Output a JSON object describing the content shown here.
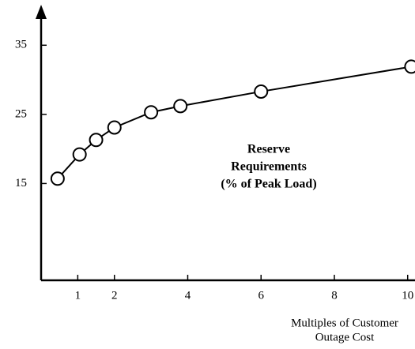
{
  "chart_data": {
    "type": "line",
    "x": [
      0.45,
      1.05,
      1.5,
      2,
      3,
      3.8,
      6,
      10.1
    ],
    "y": [
      15.7,
      19.2,
      21.3,
      23.1,
      25.3,
      26.2,
      28.3,
      31.9
    ],
    "xlim": [
      0,
      10.2
    ],
    "ylim": [
      1,
      40.4
    ],
    "xticks": [
      1,
      2,
      4,
      6,
      8,
      10
    ],
    "yticks": [
      15,
      25,
      35
    ],
    "color": "#000000",
    "annotation": [
      "Reserve",
      "Requirements",
      "(% of Peak Load)"
    ],
    "xlabel": [
      "Multiples of Customer",
      "Outage Cost"
    ]
  }
}
